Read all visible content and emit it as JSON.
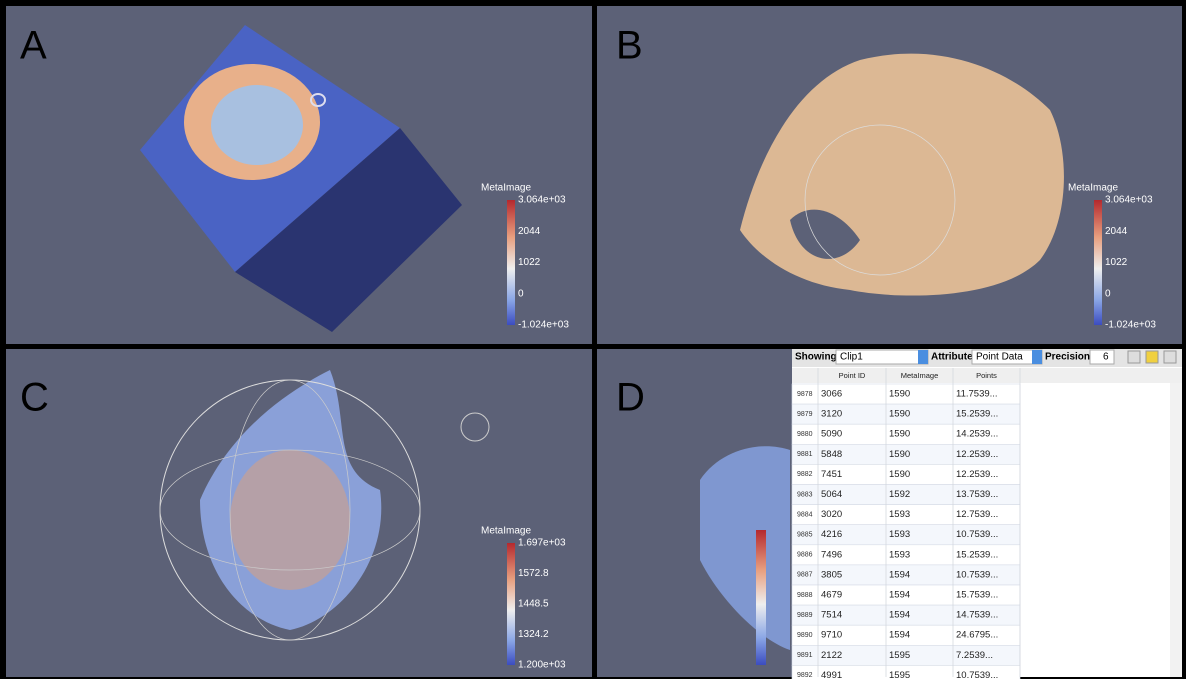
{
  "panels": [
    {
      "label": "A",
      "colorbar": {
        "title": "MetaImage",
        "ticks": [
          "3.064e+03",
          "2044",
          "1022",
          "0",
          "-1.024e+03"
        ]
      }
    },
    {
      "label": "B",
      "colorbar": {
        "title": "MetaImage",
        "ticks": [
          "3.064e+03",
          "2044",
          "1022",
          "0",
          "-1.024e+03"
        ]
      }
    },
    {
      "label": "C",
      "colorbar": {
        "title": "MetaImage",
        "ticks": [
          "1.697e+03",
          "1572.8",
          "1448.5",
          "1324.2",
          "1.200e+03"
        ]
      }
    },
    {
      "label": "D"
    }
  ],
  "spreadsheet": {
    "toolbar": {
      "showing_label": "Showing",
      "showing_value": "Clip1",
      "attribute_label": "Attribute:",
      "attribute_value": "Point Data",
      "precision_label": "Precision:",
      "precision_value": "6"
    },
    "columns": [
      "Point ID",
      "MetaImage",
      "Points"
    ],
    "rows": [
      [
        "9878",
        "3066",
        "1590",
        "11.7539..."
      ],
      [
        "9879",
        "3120",
        "1590",
        "15.2539..."
      ],
      [
        "9880",
        "5090",
        "1590",
        "14.2539..."
      ],
      [
        "9881",
        "5848",
        "1590",
        "12.2539..."
      ],
      [
        "9882",
        "7451",
        "1590",
        "12.2539..."
      ],
      [
        "9883",
        "5064",
        "1592",
        "13.7539..."
      ],
      [
        "9884",
        "3020",
        "1593",
        "12.7539..."
      ],
      [
        "9885",
        "4216",
        "1593",
        "10.7539..."
      ],
      [
        "9886",
        "7496",
        "1593",
        "15.2539..."
      ],
      [
        "9887",
        "3805",
        "1594",
        "10.7539..."
      ],
      [
        "9888",
        "4679",
        "1594",
        "15.7539..."
      ],
      [
        "9889",
        "7514",
        "1594",
        "14.7539..."
      ],
      [
        "9890",
        "9710",
        "1594",
        "24.6795..."
      ],
      [
        "9891",
        "2122",
        "1595",
        "7.2539..."
      ],
      [
        "9892",
        "4991",
        "1595",
        "10.7539..."
      ]
    ]
  }
}
